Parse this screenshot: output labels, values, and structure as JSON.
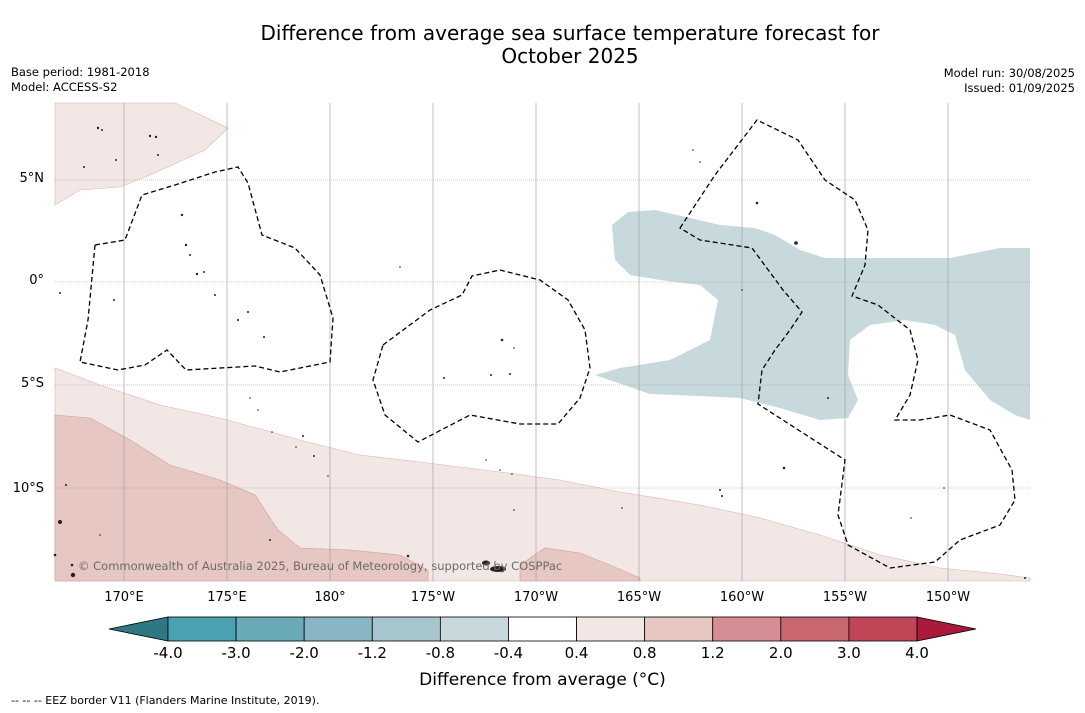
{
  "title_line1": "Difference from average sea surface temperature forecast for",
  "title_line2": "October 2025",
  "meta_left": {
    "line1": "Base period: 1981-2018",
    "line2": "Model: ACCESS-S2"
  },
  "meta_right": {
    "line1": "Model run: 30/08/2025",
    "line2": "Issued: 01/09/2025"
  },
  "map": {
    "lat_labels": [
      "5°N",
      "0°",
      "5°S",
      "10°S"
    ],
    "lon_labels": [
      "170°E",
      "175°E",
      "180°",
      "175°W",
      "170°W",
      "165°W",
      "160°W",
      "155°W",
      "150°W"
    ],
    "attribution": "© Commonwealth of Australia 2025, Bureau of Meteorology, supported by COSPPac",
    "anomaly_colors": {
      "negative_0_4_to_0_8": "#c7d9dd",
      "positive_0_4_to_0_8": "#f3e7e5",
      "positive_0_8_to_1_2": "#e6c7c2"
    },
    "eez_line_style": "dashed",
    "gridlines": true
  },
  "colorbar": {
    "ticks": [
      "-4.0",
      "-3.0",
      "-2.0",
      "-1.2",
      "-0.8",
      "-0.4",
      "0.4",
      "0.8",
      "1.2",
      "2.0",
      "3.0",
      "4.0"
    ],
    "colors": [
      "#2f7782",
      "#4ba0b1",
      "#69a9b8",
      "#88b6c2",
      "#a7c5cc",
      "#c7d9dd",
      "#ffffff",
      "#f3e7e5",
      "#e6c7c2",
      "#d58e93",
      "#c86770",
      "#be4656",
      "#a8193b"
    ],
    "label": "Difference from average (°C)"
  },
  "footnote": "--  --  -- EEZ border V11 (Flanders Marine Institute, 2019)."
}
